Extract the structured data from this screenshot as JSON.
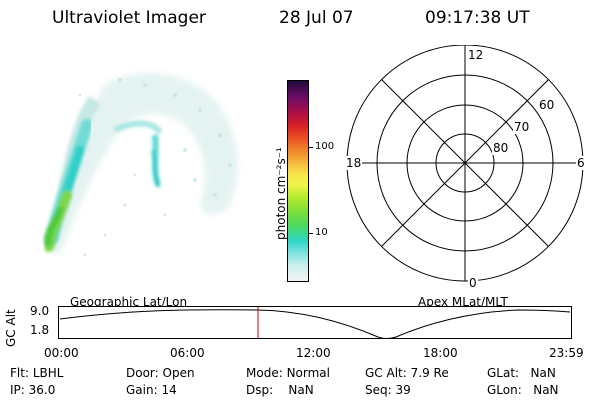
{
  "header": {
    "instrument": "Ultraviolet Imager",
    "date": "28 Jul 07",
    "time": "09:17:38 UT"
  },
  "colorbar": {
    "unit_label": "photon cm⁻²s⁻¹",
    "ticks": [
      "100",
      "10"
    ]
  },
  "polar_plot": {
    "mlt_labels": {
      "top": "12",
      "left": "18",
      "right": "6",
      "bottom": "0"
    },
    "lat_labels": [
      "60",
      "70",
      "80"
    ]
  },
  "timeline": {
    "left_title": "Geographic Lat/Lon",
    "right_title": "Apex MLat/MLT",
    "y_axis_label": "GC Alt",
    "y_ticks": [
      "9.0",
      "1.8"
    ],
    "x_ticks": [
      "00:00",
      "06:00",
      "12:00",
      "18:00",
      "23:59"
    ],
    "marker_time": "09:17:38",
    "marker_color": "#cc0000"
  },
  "info_rows": [
    [
      {
        "label": "Flt:",
        "value": "LBHL"
      },
      {
        "label": "Door:",
        "value": "Open"
      },
      {
        "label": "Mode:",
        "value": "Normal"
      },
      {
        "label": "GC Alt:",
        "value": "7.9 Re"
      },
      {
        "label": "GLat:",
        "value": "NaN"
      }
    ],
    [
      {
        "label": "IP:",
        "value": "36.0"
      },
      {
        "label": "Gain:",
        "value": "14"
      },
      {
        "label": "Dsp:",
        "value": "NaN"
      },
      {
        "label": "Seq:",
        "value": "39"
      },
      {
        "label": "GLon:",
        "value": "NaN"
      }
    ]
  ]
}
